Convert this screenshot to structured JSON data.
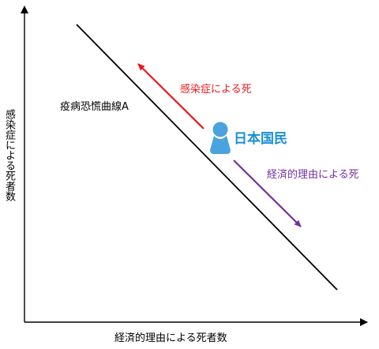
{
  "axes": {
    "x_label": "経済的理由による死者数",
    "y_label": "感染症による死者数"
  },
  "curve": {
    "label": "疫病恐慌曲線A"
  },
  "arrows": {
    "up": {
      "label": "感染症による死",
      "color": "#e8191f"
    },
    "down": {
      "label": "経済的理由による死",
      "color": "#7030a0"
    }
  },
  "marker": {
    "label": "日本国民",
    "icon": "person-icon",
    "color": "#4aa3df",
    "label_color": "#1a8fd3"
  }
}
